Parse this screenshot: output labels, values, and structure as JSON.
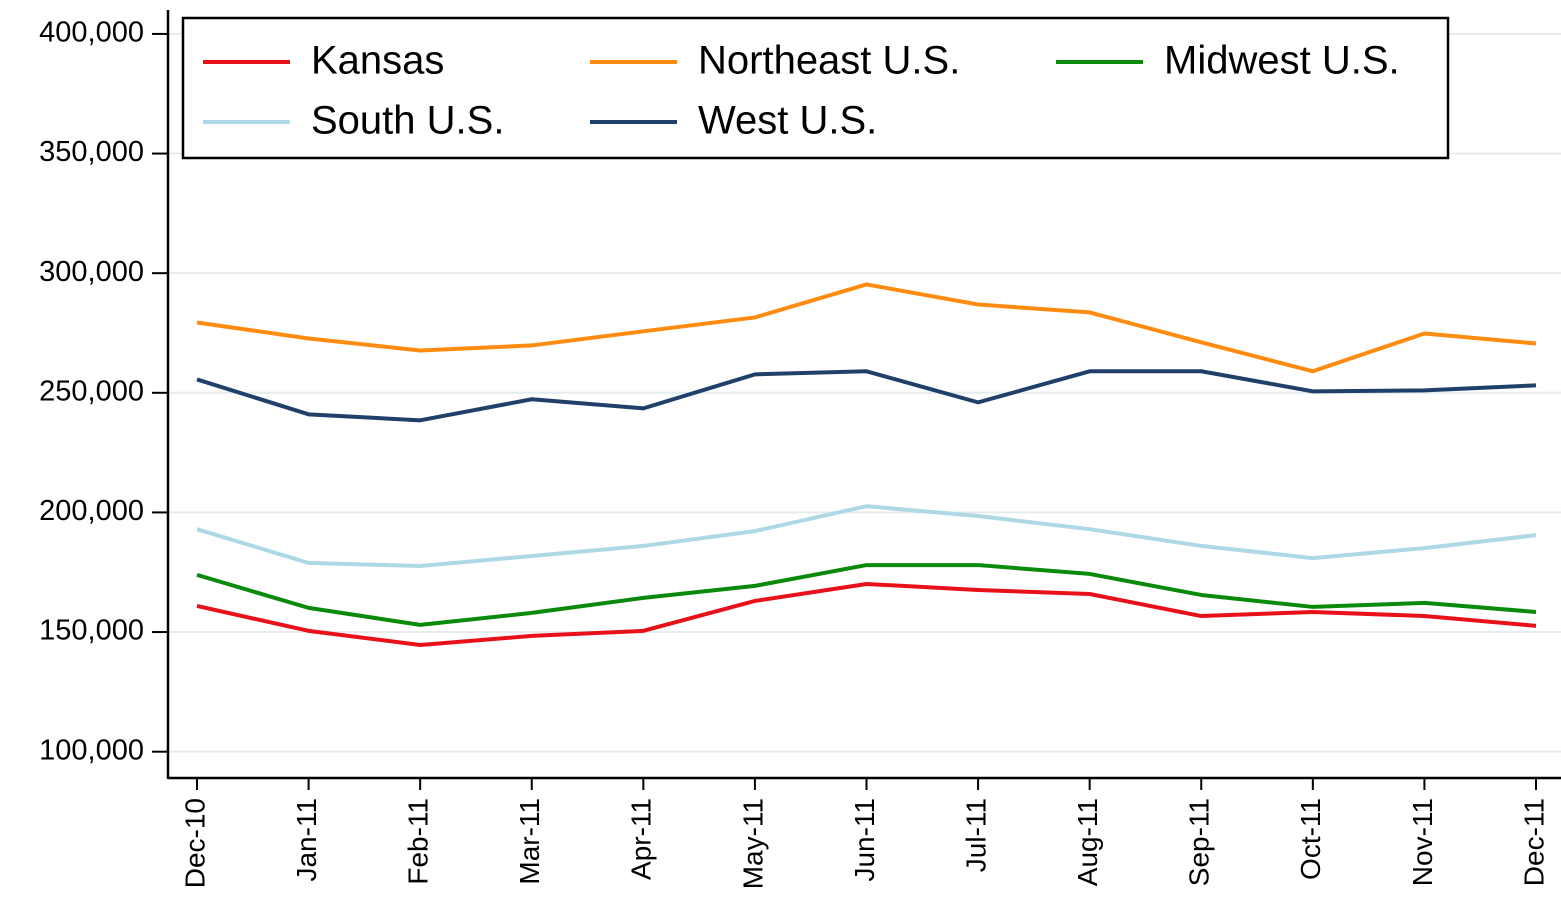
{
  "chart_data": {
    "type": "line",
    "categories": [
      "Dec-10",
      "Jan-11",
      "Feb-11",
      "Mar-11",
      "Apr-11",
      "May-11",
      "Jun-11",
      "Jul-11",
      "Aug-11",
      "Sep-11",
      "Oct-11",
      "Nov-11",
      "Dec-11"
    ],
    "series": [
      {
        "name": "Kansas",
        "color": "#e8111a",
        "values": [
          160900,
          150500,
          144600,
          148400,
          150500,
          163000,
          170100,
          167600,
          165900,
          156700,
          158400,
          156700,
          152600
        ]
      },
      {
        "name": "Northeast U.S.",
        "color": "#ff8c10",
        "values": [
          279400,
          272700,
          267700,
          269800,
          275700,
          281500,
          295300,
          286900,
          283600,
          271100,
          259000,
          274800,
          270600
        ]
      },
      {
        "name": "Midwest U.S.",
        "color": "#0a8a0a",
        "values": [
          173900,
          160100,
          153000,
          158000,
          164300,
          169300,
          178000,
          178000,
          174300,
          165500,
          160500,
          162200,
          158400
        ]
      },
      {
        "name": "South U.S.",
        "color": "#add8e6",
        "values": [
          193000,
          178900,
          177600,
          181800,
          186000,
          192200,
          202600,
          198500,
          193000,
          186000,
          180900,
          185100,
          190500
        ]
      },
      {
        "name": "West U.S.",
        "color": "#1f4068",
        "values": [
          255600,
          241000,
          238500,
          247300,
          243500,
          257700,
          259000,
          246000,
          259000,
          259000,
          250600,
          251000,
          253100
        ]
      }
    ],
    "ylim": [
      89000,
      410000
    ],
    "yticks": [
      {
        "value": 100000,
        "label": "100,000"
      },
      {
        "value": 150000,
        "label": "150,000"
      },
      {
        "value": 200000,
        "label": "200,000"
      },
      {
        "value": 250000,
        "label": "250,000"
      },
      {
        "value": 300000,
        "label": "300,000"
      },
      {
        "value": 350000,
        "label": "350,000"
      },
      {
        "value": 400000,
        "label": "400,000"
      }
    ],
    "grid": true,
    "legend_position": "top"
  }
}
